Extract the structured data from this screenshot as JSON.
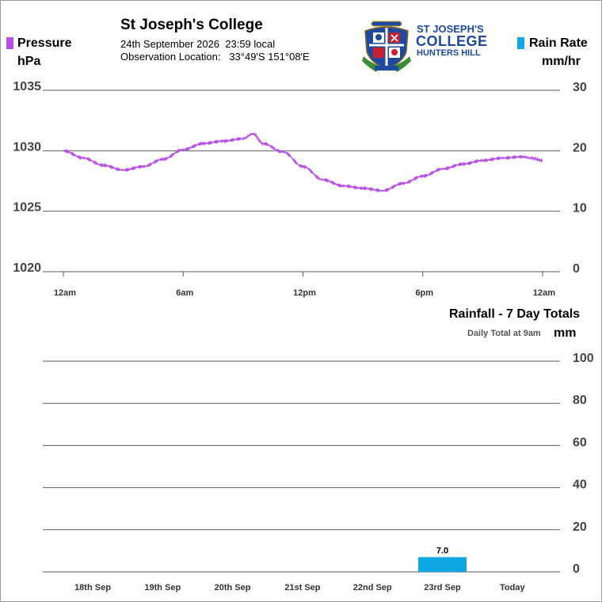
{
  "header": {
    "station_name": "St Joseph's College",
    "date_time": "24th September 2026  23:59 local",
    "location_label": "Observation Location:",
    "location_coords": "33°49'S 151°08'E",
    "logo": {
      "line1": "ST JOSEPH'S",
      "line2": "COLLEGE",
      "line3": "HUNTERS HILL",
      "crest_icon": "school-crest-icon"
    }
  },
  "legend": {
    "pressure": {
      "label": "Pressure",
      "unit": "hPa",
      "color": "#b84ee8"
    },
    "rain_rate": {
      "label": "Rain Rate",
      "unit": "mm/hr",
      "color": "#0fa7e6"
    }
  },
  "rainfall_panel": {
    "title": "Rainfall - 7 Day Totals",
    "subtitle": "Daily Total at 9am",
    "unit": "mm"
  },
  "chart_data": [
    {
      "type": "line",
      "title": "",
      "x_ticks": [
        "12am",
        "6am",
        "12pm",
        "6pm",
        "12am"
      ],
      "x_hours": [
        0,
        6,
        12,
        18,
        24
      ],
      "y_left": {
        "label": "hPa",
        "ticks": [
          1035,
          1030,
          1025,
          1020
        ],
        "ylim": [
          1020,
          1035
        ]
      },
      "y_right": {
        "label": "mm/hr",
        "ticks": [
          30,
          20,
          10,
          0
        ],
        "ylim": [
          0,
          30
        ]
      },
      "grid": true,
      "series": [
        {
          "name": "Pressure",
          "color": "#b84ee8",
          "x": [
            0,
            1,
            2,
            3,
            4,
            5,
            6,
            7,
            8,
            9,
            9.5,
            10,
            11,
            12,
            13,
            14,
            15,
            16,
            17,
            18,
            19,
            20,
            21,
            22,
            23,
            23.4,
            24
          ],
          "y": [
            1030.0,
            1029.4,
            1028.8,
            1028.4,
            1028.7,
            1029.3,
            1030.1,
            1030.6,
            1030.8,
            1031.0,
            1031.4,
            1030.6,
            1029.9,
            1028.7,
            1027.6,
            1027.1,
            1026.9,
            1026.7,
            1027.3,
            1027.9,
            1028.5,
            1028.9,
            1029.2,
            1029.4,
            1029.5,
            1029.4,
            1029.2
          ]
        },
        {
          "name": "Rain Rate",
          "color": "#0fa7e6",
          "x": [],
          "y": []
        }
      ]
    },
    {
      "type": "bar",
      "title": "Rainfall - 7 Day Totals",
      "categories": [
        "18th Sep",
        "19th Sep",
        "20th Sep",
        "21st Sep",
        "22nd Sep",
        "23rd Sep",
        "Today"
      ],
      "values": [
        0,
        0,
        0,
        0,
        0,
        7.0,
        0
      ],
      "labels": [
        "",
        "",
        "",
        "",
        "",
        "7.0",
        ""
      ],
      "color": "#0fa7e6",
      "ylabel": "mm",
      "y_ticks": [
        100,
        80,
        60,
        40,
        20,
        0
      ],
      "ylim": [
        0,
        100
      ],
      "grid": true
    }
  ]
}
